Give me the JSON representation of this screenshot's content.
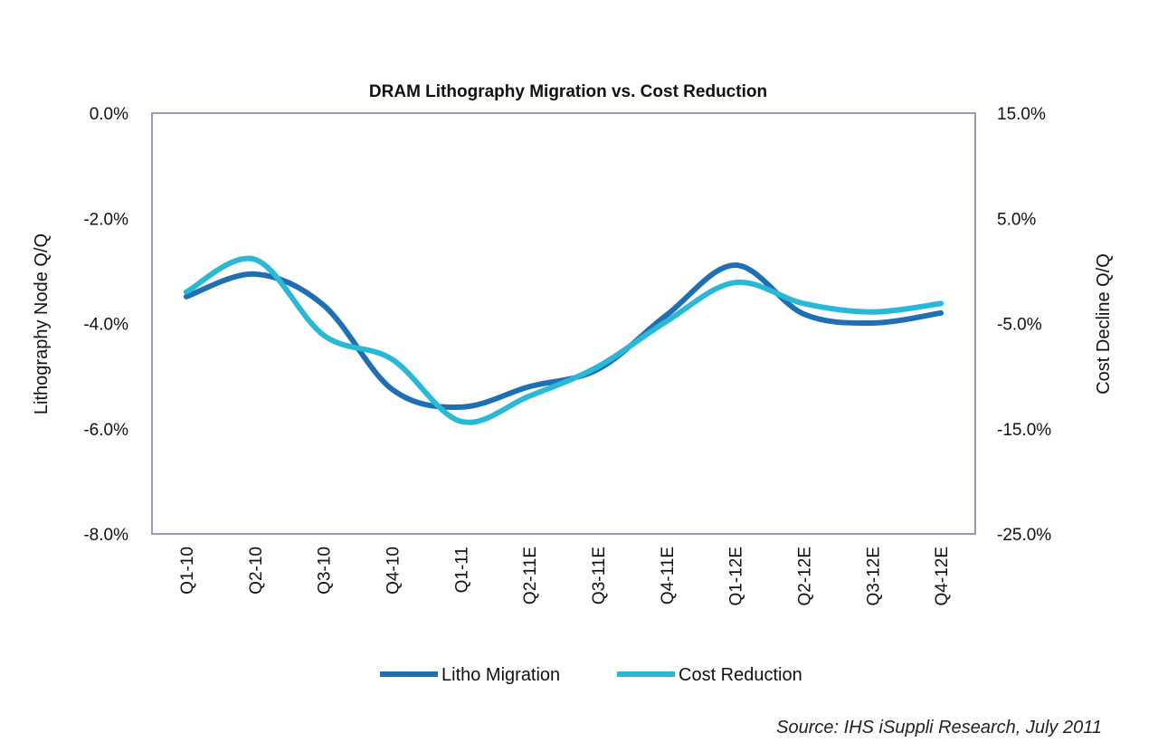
{
  "chart_data": {
    "type": "line",
    "title": "DRAM Lithography Migration vs. Cost Reduction",
    "categories": [
      "Q1-10",
      "Q2-10",
      "Q3-10",
      "Q4-10",
      "Q1-11",
      "Q2-11E",
      "Q3-11E",
      "Q4-11E",
      "Q1-12E",
      "Q2-12E",
      "Q3-12E",
      "Q4-12E"
    ],
    "ylabel": "Lithography Node Q/Q",
    "y2label": "Cost Decline Q/Q",
    "ylim": [
      -8,
      0
    ],
    "y2lim": [
      -25,
      15
    ],
    "yticks": [
      "0.0%",
      "-2.0%",
      "-4.0%",
      "-6.0%",
      "-8.0%"
    ],
    "y2ticks": [
      "15.0%",
      "5.0%",
      "-5.0%",
      "-15.0%",
      "-25.0%"
    ],
    "grid": false,
    "legend_position": "bottom",
    "series": [
      {
        "name": "Litho Migration",
        "axis": "left",
        "color": "#1f6fb4",
        "values": [
          -3.49,
          -3.06,
          -3.65,
          -5.25,
          -5.59,
          -5.2,
          -4.87,
          -3.84,
          -2.89,
          -3.82,
          -3.99,
          -3.8
        ]
      },
      {
        "name": "Cost Reduction",
        "axis": "right",
        "color": "#29b9d6",
        "values": [
          -2.0,
          1.1,
          -6.1,
          -8.4,
          -14.3,
          -11.9,
          -9.1,
          -4.8,
          -1.1,
          -3.1,
          -3.9,
          -3.1
        ]
      }
    ],
    "source": "Source: IHS iSuppli Research, July 2011"
  }
}
